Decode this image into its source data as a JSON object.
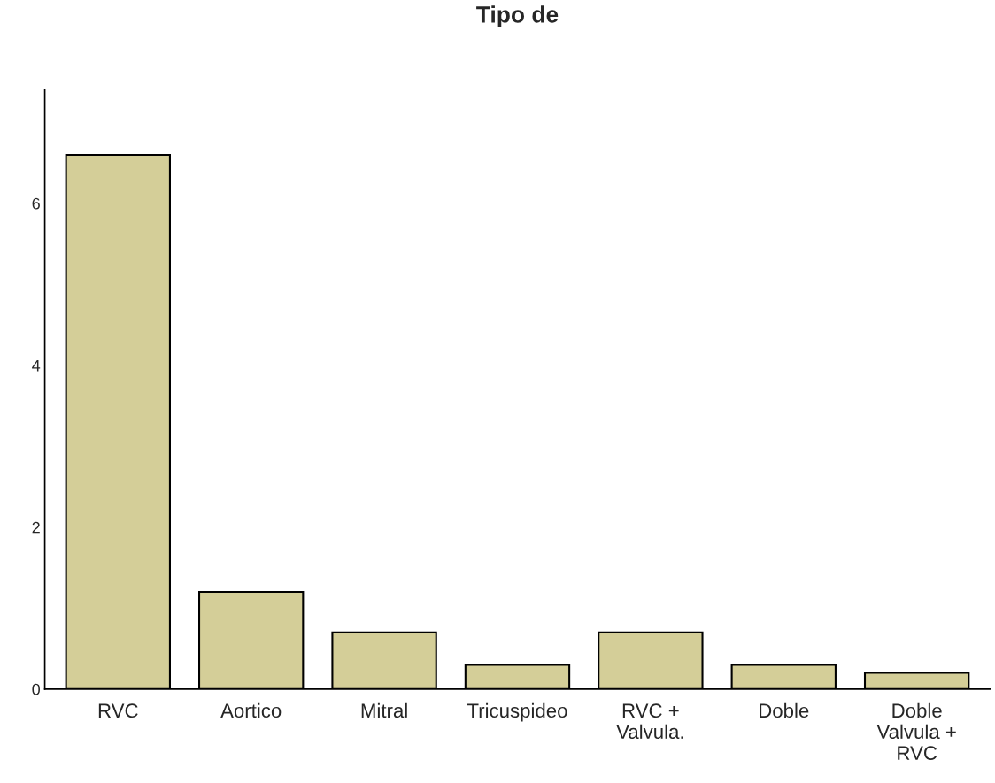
{
  "chart_data": {
    "type": "bar",
    "title": "Tipo de",
    "categories": [
      "RVC",
      "Aortico",
      "Mitral",
      "Tricuspideo",
      "RVC +\nValvula.",
      "Doble",
      "Doble\nValvula +\nRVC"
    ],
    "values": [
      6.6,
      1.2,
      0.7,
      0.3,
      0.7,
      0.3,
      0.2
    ],
    "color": "#d4ce98",
    "ylim": [
      0,
      7.4
    ],
    "yticks": [
      0,
      2,
      4,
      6
    ],
    "grid": false,
    "legend": false
  }
}
